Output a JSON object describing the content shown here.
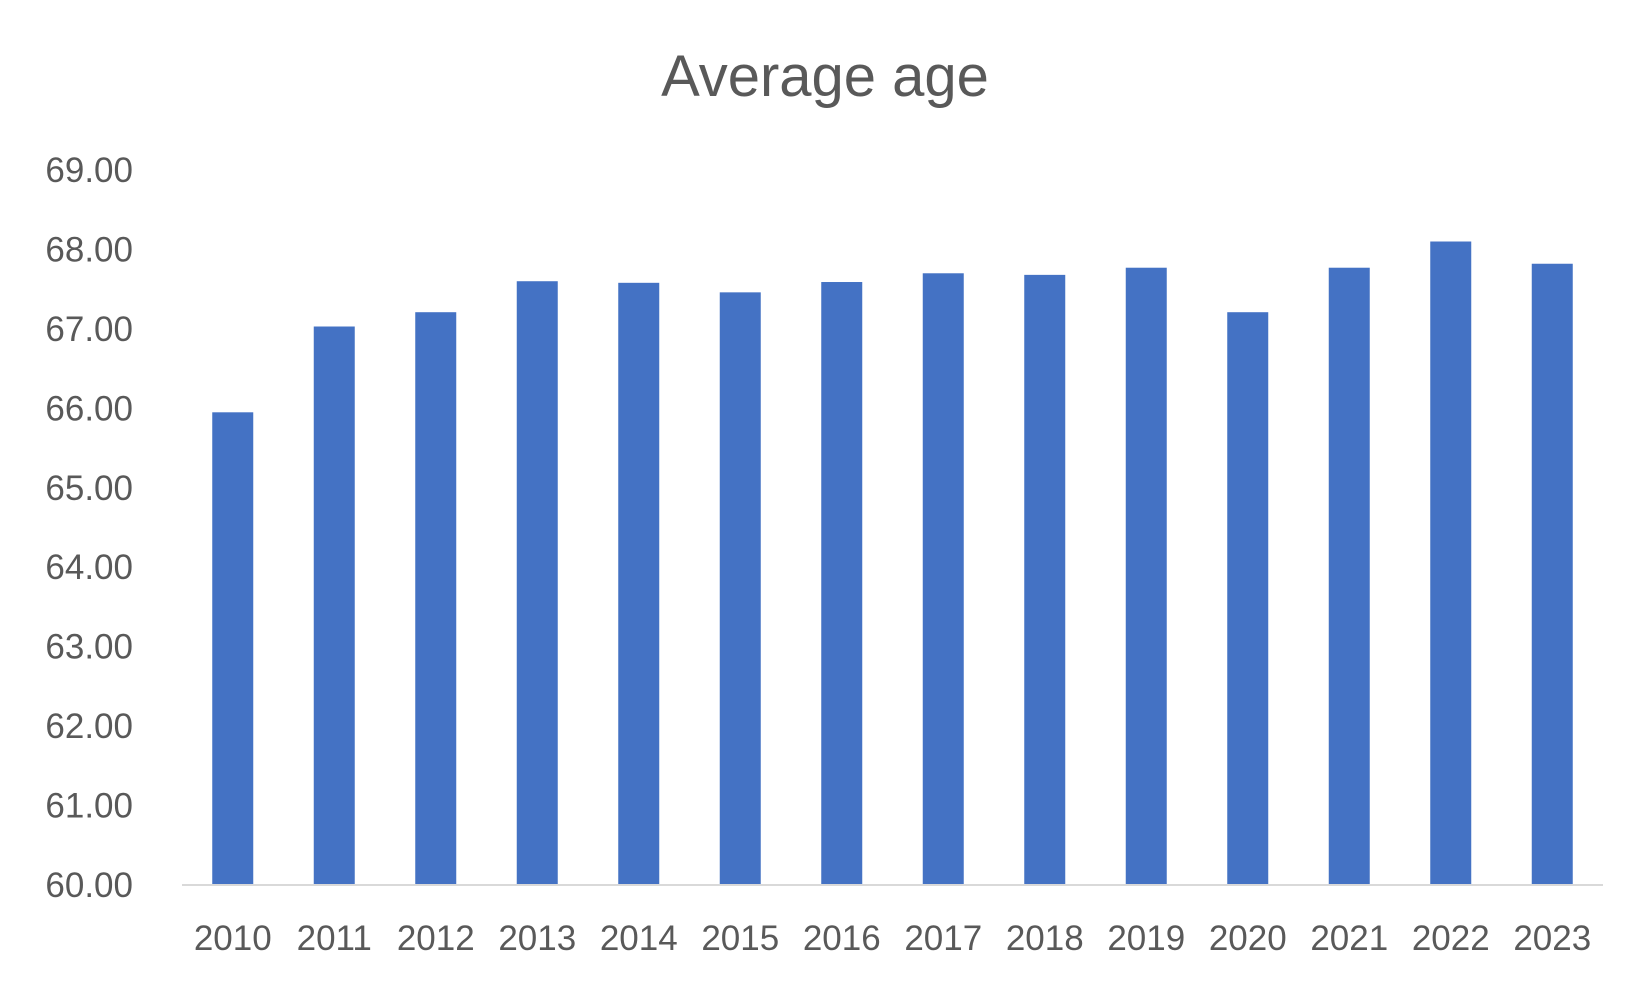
{
  "chart_data": {
    "type": "bar",
    "title": "Average age",
    "xlabel": "",
    "ylabel": "",
    "categories": [
      "2010",
      "2011",
      "2012",
      "2013",
      "2014",
      "2015",
      "2016",
      "2017",
      "2018",
      "2019",
      "2020",
      "2021",
      "2022",
      "2023"
    ],
    "series": [
      {
        "values": [
          65.95,
          67.03,
          67.21,
          67.6,
          67.58,
          67.46,
          67.59,
          67.7,
          67.68,
          67.77,
          67.21,
          67.77,
          68.1,
          67.82
        ]
      }
    ],
    "ylim": [
      60,
      69
    ],
    "yticks": [
      60,
      61,
      62,
      63,
      64,
      65,
      66,
      67,
      68,
      69
    ],
    "ytick_labels": [
      "60.00",
      "61.00",
      "62.00",
      "63.00",
      "64.00",
      "65.00",
      "66.00",
      "67.00",
      "68.00",
      "69.00"
    ],
    "grid": false,
    "legend": "none",
    "colors": {
      "bar": "#4472C4",
      "axis": "#D9D9D9",
      "text": "#595959"
    }
  }
}
